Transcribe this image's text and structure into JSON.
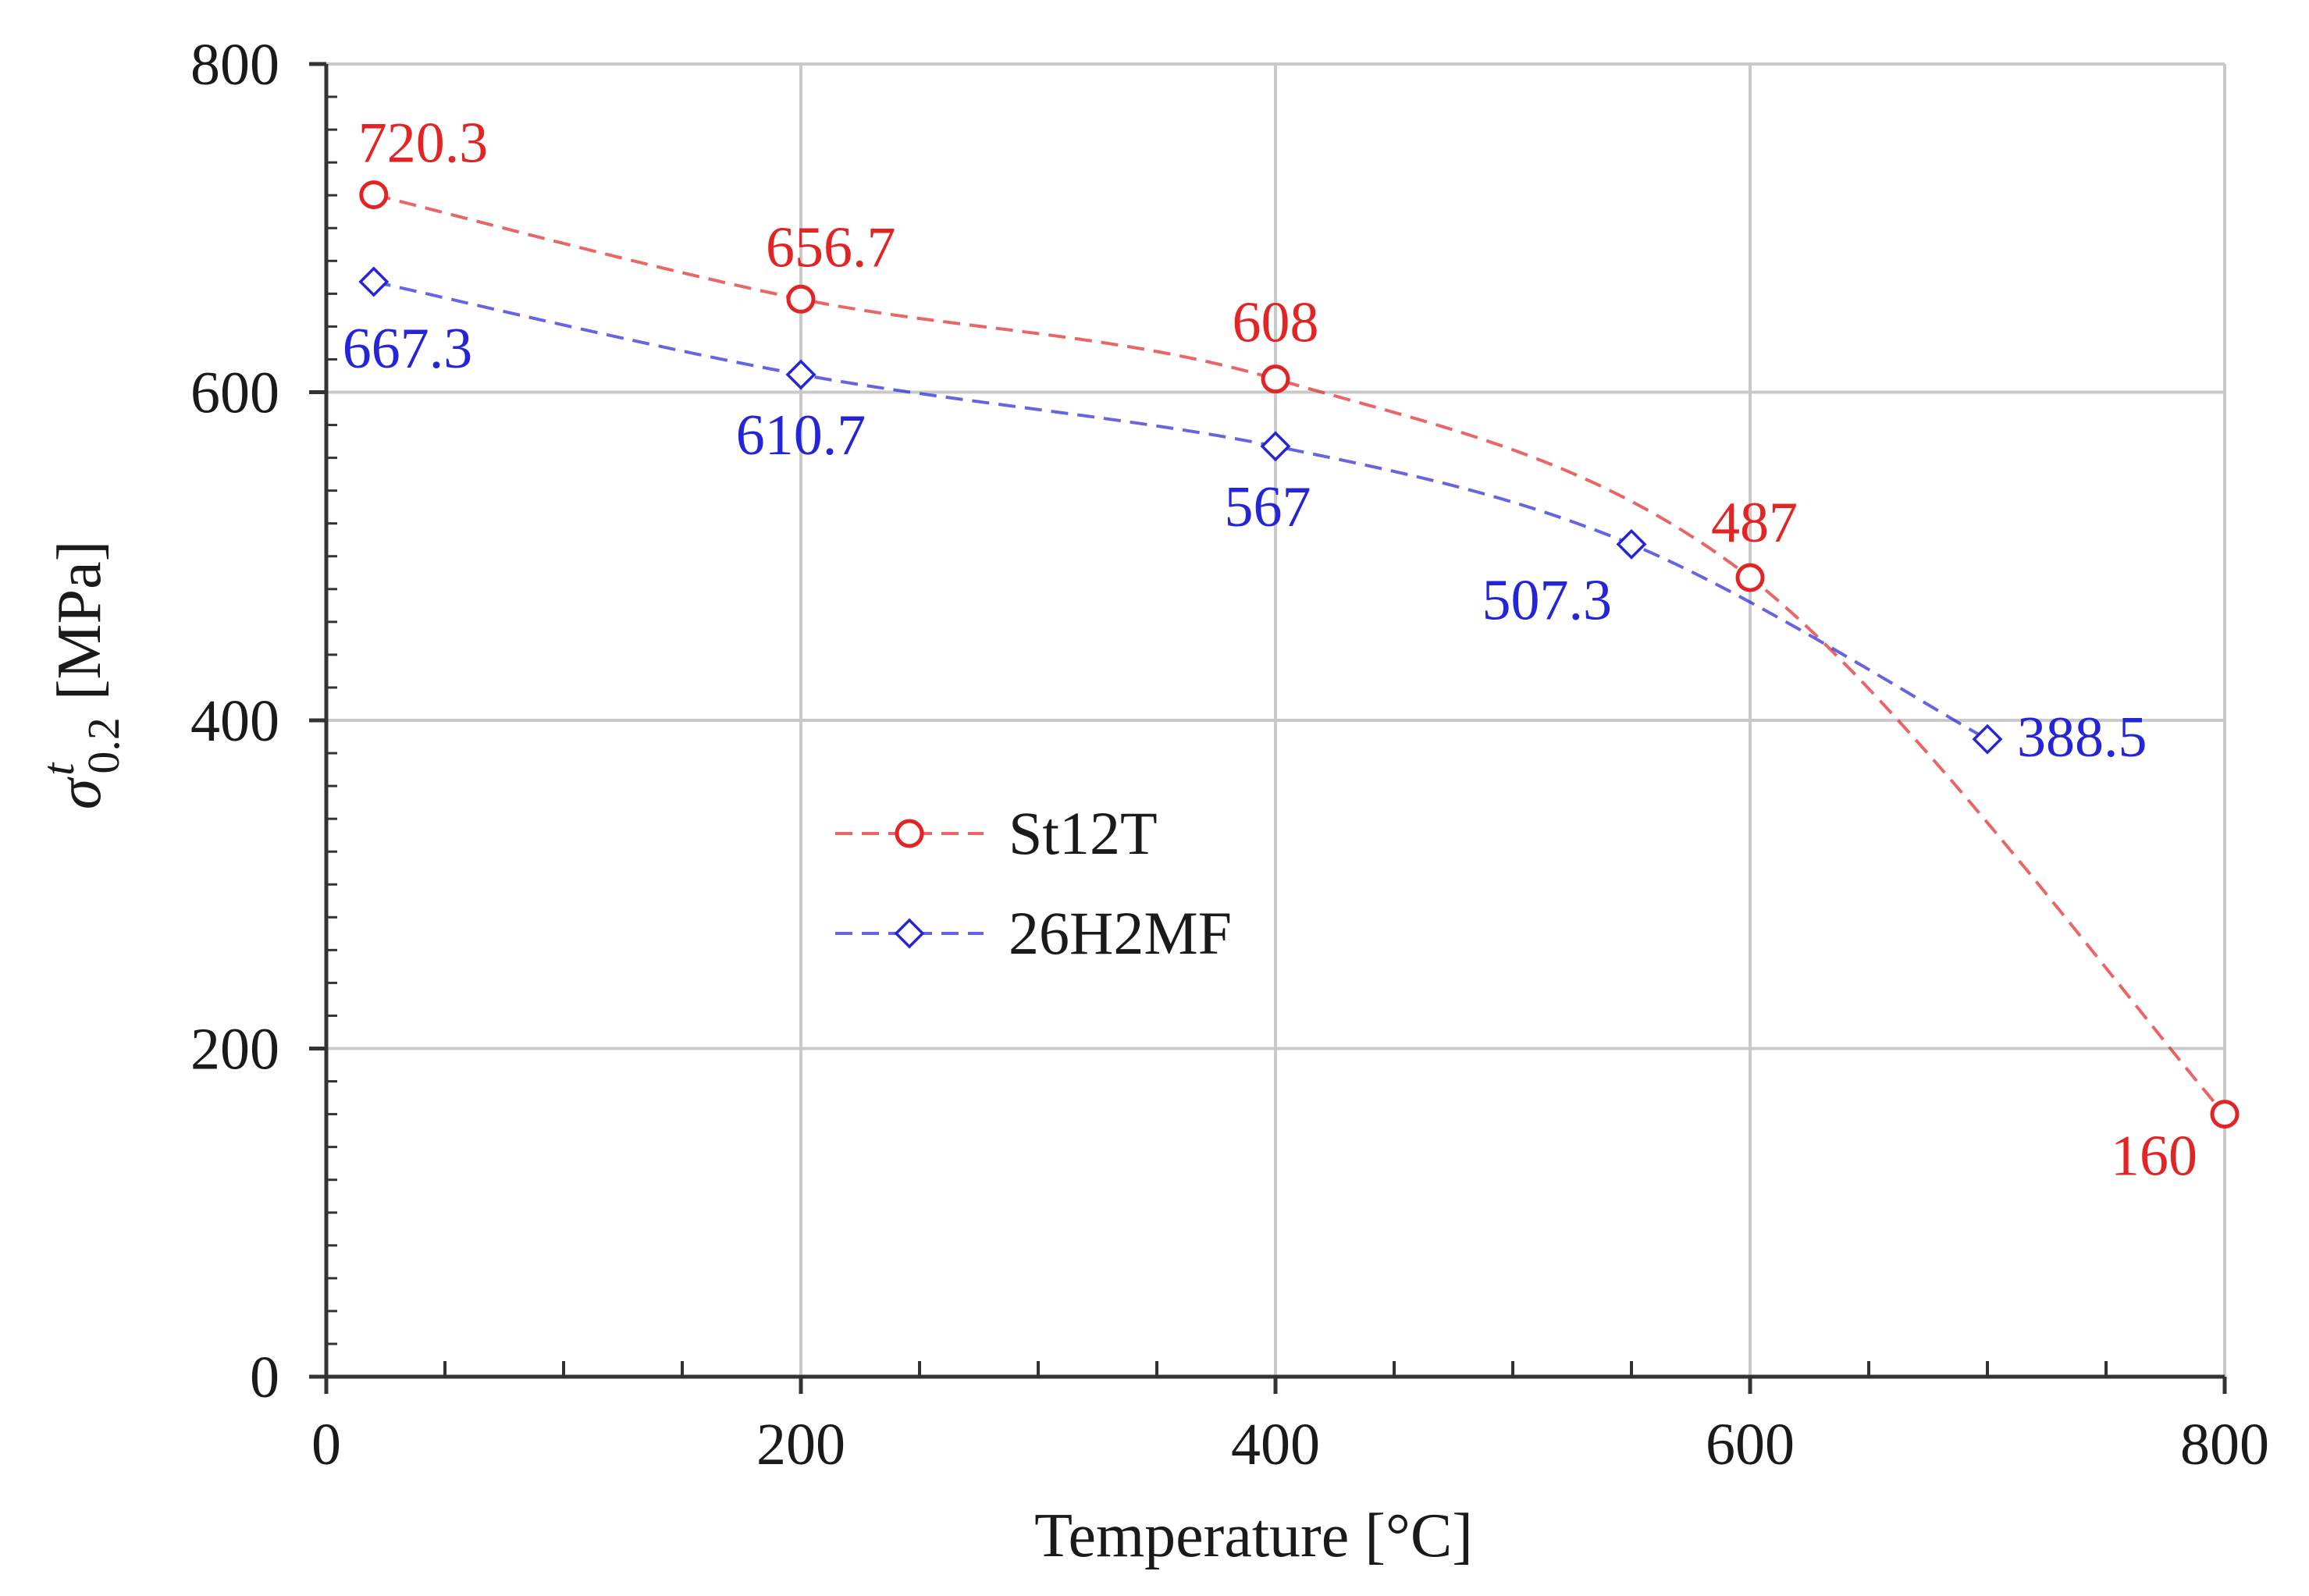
{
  "chart_data": {
    "type": "line",
    "title": "",
    "xlabel": "Temperature [°C]",
    "ylabel": {
      "symbol": "σ",
      "subscript": "0.2",
      "superscript": "t",
      "unit": "[MPa]"
    },
    "xlim": [
      0,
      800
    ],
    "ylim": [
      0,
      800
    ],
    "xticks": [
      "0",
      "200",
      "400",
      "600",
      "800"
    ],
    "yticks": [
      "0",
      "200",
      "400",
      "600",
      "800"
    ],
    "grid": true,
    "legend_position": "center-left",
    "series": [
      {
        "name": "St12T",
        "color": "#e32424",
        "marker": "circle",
        "line_style": "dashed",
        "points": [
          {
            "x": 20,
            "y": 720.3,
            "label": "720.3"
          },
          {
            "x": 200,
            "y": 656.7,
            "label": "656.7"
          },
          {
            "x": 400,
            "y": 608,
            "label": "608"
          },
          {
            "x": 600,
            "y": 487,
            "label": "487"
          },
          {
            "x": 800,
            "y": 160,
            "label": "160"
          }
        ]
      },
      {
        "name": "26H2MF",
        "color": "#2424d8",
        "marker": "diamond",
        "line_style": "dashed",
        "points": [
          {
            "x": 20,
            "y": 667.3,
            "label": "667.3"
          },
          {
            "x": 200,
            "y": 610.7,
            "label": "610.7"
          },
          {
            "x": 400,
            "y": 567,
            "label": "567"
          },
          {
            "x": 550,
            "y": 507.3,
            "label": "507.3"
          },
          {
            "x": 700,
            "y": 388.5,
            "label": "388.5"
          }
        ]
      }
    ]
  }
}
